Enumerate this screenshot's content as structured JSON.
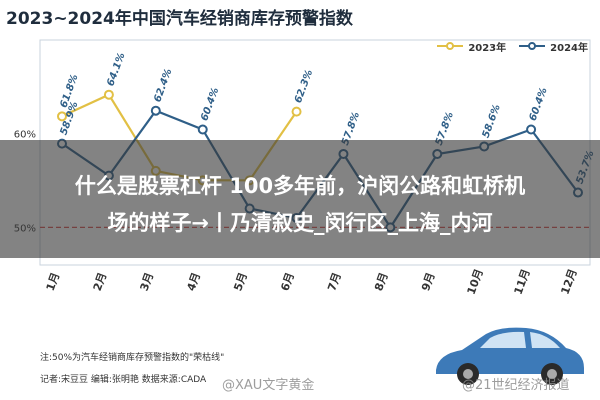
{
  "chart_data": {
    "type": "line",
    "title": "2023~2024年中国汽车经销商库存预警指数",
    "categories": [
      "1月",
      "2月",
      "3月",
      "4月",
      "5月",
      "6月",
      "7月",
      "8月",
      "9月",
      "10月",
      "11月",
      "12月"
    ],
    "series": [
      {
        "name": "2023年",
        "color": "#e2c045",
        "values": [
          61.8,
          64.1,
          56.0,
          55.0,
          55.0,
          62.3,
          null,
          null,
          null,
          null,
          null,
          null
        ],
        "labels": [
          "61.8%",
          "64.1%",
          "",
          "",
          "",
          "62.3%",
          "",
          "",
          "",
          "",
          "",
          ""
        ]
      },
      {
        "name": "2024年",
        "color": "#2f5f88",
        "values": [
          58.9,
          55.5,
          62.4,
          60.4,
          52.0,
          51.0,
          57.8,
          50.0,
          57.8,
          58.6,
          60.4,
          53.7
        ],
        "labels": [
          "58.9%",
          "",
          "62.4%",
          "60.4%",
          "",
          "",
          "57.8%",
          "",
          "57.8%",
          "58.6%",
          "60.4%",
          "53.7%"
        ]
      }
    ],
    "y_ticks": [
      "60%",
      "50%"
    ],
    "ylim": [
      46,
      68
    ],
    "reference_line": {
      "value": 50,
      "label": "50%",
      "color": "#d9534f"
    },
    "legend": "top-right"
  },
  "overlay": {
    "line1": "什么是股票杠杆 100多年前，沪闵公路和虹桥机",
    "line2": "场的样子→丨乃清叙史_闵行区_上海_内河"
  },
  "footer": {
    "note": "注:50%为汽车经销商库存预警指数的\"荣枯线\"",
    "credit": "记者:宋豆豆  编辑:张明艳  数据来源:CADA"
  },
  "watermarks": {
    "left": "@XAU文字黄金",
    "right": "@21世纪经济报道"
  }
}
